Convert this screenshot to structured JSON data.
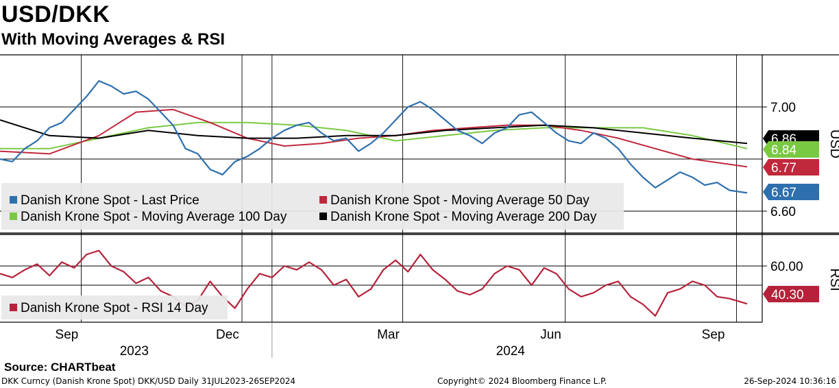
{
  "title": "USD/DKK",
  "subtitle": "With Moving Averages & RSI",
  "source": "Source: CHARTbeat",
  "footer_left": "DKK Curncy (Danish Krone Spot) DKK/USD  Daily 31JUL2023-26SEP2024",
  "footer_center": "Copyright© 2024 Bloomberg Finance L.P.",
  "footer_right": "26-Sep-2024 10:36:16",
  "colors": {
    "price": "#2e6fad",
    "ma50": "#c0283c",
    "ma100": "#7ac943",
    "ma200": "#000000",
    "rsi": "#b5223a",
    "grid": "#000000"
  },
  "chart_data": [
    {
      "type": "line",
      "panel": "price",
      "axis_title": "USD",
      "yticks": [
        "7.00",
        "6.60"
      ],
      "ylim": [
        6.55,
        7.2
      ],
      "xlim": [
        "2023-07-31",
        "2024-09-26"
      ],
      "x_tick_labels": [
        "Sep",
        "Dec",
        "Mar",
        "Jun",
        "Sep"
      ],
      "year_labels": [
        "2023",
        "2024"
      ],
      "legend": [
        {
          "key": "price",
          "label": "Danish Krone Spot - Last Price"
        },
        {
          "key": "ma50",
          "label": "Danish Krone Spot - Moving Average 50 Day"
        },
        {
          "key": "ma100",
          "label": "Danish Krone Spot - Moving Average 100 Day"
        },
        {
          "key": "ma200",
          "label": "Danish Krone Spot - Moving Average 200 Day"
        }
      ],
      "badges": [
        {
          "key": "ma200",
          "text": "6.86",
          "value": 6.86
        },
        {
          "key": "ma100",
          "text": "6.84",
          "value": 6.84
        },
        {
          "key": "ma50",
          "text": "6.77",
          "value": 6.77
        },
        {
          "key": "price",
          "text": "6.67",
          "value": 6.67
        }
      ],
      "series": [
        {
          "key": "price",
          "name": "Danish Krone Spot - Last Price",
          "x": [
            "2023-07-31",
            "2023-08-07",
            "2023-08-14",
            "2023-08-21",
            "2023-08-28",
            "2023-09-04",
            "2023-09-11",
            "2023-09-18",
            "2023-09-25",
            "2023-10-02",
            "2023-10-09",
            "2023-10-16",
            "2023-10-23",
            "2023-10-30",
            "2023-11-06",
            "2023-11-13",
            "2023-11-20",
            "2023-11-27",
            "2023-12-04",
            "2023-12-11",
            "2023-12-18",
            "2023-12-25",
            "2024-01-01",
            "2024-01-08",
            "2024-01-15",
            "2024-01-22",
            "2024-01-29",
            "2024-02-05",
            "2024-02-12",
            "2024-02-19",
            "2024-02-26",
            "2024-03-04",
            "2024-03-11",
            "2024-03-18",
            "2024-03-25",
            "2024-04-01",
            "2024-04-08",
            "2024-04-15",
            "2024-04-22",
            "2024-04-29",
            "2024-05-06",
            "2024-05-13",
            "2024-05-20",
            "2024-05-27",
            "2024-06-03",
            "2024-06-10",
            "2024-06-17",
            "2024-06-24",
            "2024-07-01",
            "2024-07-08",
            "2024-07-15",
            "2024-07-22",
            "2024-07-29",
            "2024-08-05",
            "2024-08-12",
            "2024-08-19",
            "2024-08-26",
            "2024-09-02",
            "2024-09-09",
            "2024-09-16",
            "2024-09-26"
          ],
          "values": [
            6.8,
            6.79,
            6.84,
            6.87,
            6.92,
            6.94,
            6.99,
            7.04,
            7.1,
            7.08,
            7.05,
            7.06,
            7.03,
            6.98,
            6.93,
            6.84,
            6.82,
            6.76,
            6.74,
            6.79,
            6.81,
            6.84,
            6.88,
            6.91,
            6.93,
            6.94,
            6.9,
            6.87,
            6.88,
            6.83,
            6.86,
            6.9,
            6.95,
            7.0,
            7.02,
            6.99,
            6.95,
            6.91,
            6.89,
            6.86,
            6.9,
            6.92,
            6.97,
            6.98,
            6.94,
            6.9,
            6.87,
            6.86,
            6.9,
            6.88,
            6.84,
            6.78,
            6.73,
            6.69,
            6.72,
            6.75,
            6.73,
            6.7,
            6.71,
            6.68,
            6.67
          ]
        },
        {
          "key": "ma50",
          "name": "Danish Krone Spot - Moving Average 50 Day",
          "x": [
            "2023-07-31",
            "2023-08-28",
            "2023-09-25",
            "2023-10-16",
            "2023-11-06",
            "2023-11-27",
            "2023-12-18",
            "2024-01-08",
            "2024-01-29",
            "2024-02-19",
            "2024-03-11",
            "2024-04-01",
            "2024-04-22",
            "2024-05-13",
            "2024-06-03",
            "2024-06-24",
            "2024-07-15",
            "2024-08-05",
            "2024-08-26",
            "2024-09-26"
          ],
          "values": [
            6.83,
            6.82,
            6.89,
            6.98,
            6.99,
            6.94,
            6.88,
            6.85,
            6.86,
            6.88,
            6.89,
            6.91,
            6.92,
            6.93,
            6.93,
            6.91,
            6.88,
            6.84,
            6.8,
            6.77
          ]
        },
        {
          "key": "ma100",
          "name": "Danish Krone Spot - Moving Average 100 Day",
          "x": [
            "2023-07-31",
            "2023-08-28",
            "2023-09-25",
            "2023-10-23",
            "2023-11-20",
            "2023-12-18",
            "2024-01-15",
            "2024-02-12",
            "2024-03-11",
            "2024-04-08",
            "2024-05-06",
            "2024-06-03",
            "2024-07-01",
            "2024-07-29",
            "2024-08-26",
            "2024-09-26"
          ],
          "values": [
            6.84,
            6.84,
            6.88,
            6.92,
            6.94,
            6.94,
            6.93,
            6.91,
            6.87,
            6.89,
            6.91,
            6.92,
            6.92,
            6.92,
            6.89,
            6.84
          ]
        },
        {
          "key": "ma200",
          "name": "Danish Krone Spot - Moving Average 200 Day",
          "x": [
            "2023-07-31",
            "2023-08-28",
            "2023-09-25",
            "2023-10-23",
            "2023-11-20",
            "2023-12-18",
            "2024-01-15",
            "2024-02-12",
            "2024-03-11",
            "2024-04-08",
            "2024-05-06",
            "2024-06-03",
            "2024-07-01",
            "2024-07-29",
            "2024-08-26",
            "2024-09-26"
          ],
          "values": [
            6.95,
            6.89,
            6.88,
            6.91,
            6.89,
            6.88,
            6.88,
            6.89,
            6.89,
            6.91,
            6.92,
            6.93,
            6.92,
            6.9,
            6.88,
            6.86
          ]
        }
      ]
    },
    {
      "type": "line",
      "panel": "rsi",
      "axis_title": "RSI",
      "yticks": [
        "60.00"
      ],
      "ylim": [
        25,
        75
      ],
      "legend": [
        {
          "key": "rsi",
          "label": "Danish Krone Spot - RSI 14 Day"
        }
      ],
      "badges": [
        {
          "key": "rsi",
          "text": "40.30",
          "value": 40.3
        }
      ],
      "series": [
        {
          "key": "rsi",
          "name": "Danish Krone Spot - RSI 14 Day",
          "x": [
            "2023-07-31",
            "2023-08-07",
            "2023-08-14",
            "2023-08-21",
            "2023-08-28",
            "2023-09-04",
            "2023-09-11",
            "2023-09-18",
            "2023-09-25",
            "2023-10-02",
            "2023-10-09",
            "2023-10-16",
            "2023-10-23",
            "2023-10-30",
            "2023-11-06",
            "2023-11-13",
            "2023-11-20",
            "2023-11-27",
            "2023-12-04",
            "2023-12-11",
            "2023-12-18",
            "2023-12-25",
            "2024-01-01",
            "2024-01-08",
            "2024-01-15",
            "2024-01-22",
            "2024-01-29",
            "2024-02-05",
            "2024-02-12",
            "2024-02-19",
            "2024-02-26",
            "2024-03-04",
            "2024-03-11",
            "2024-03-18",
            "2024-03-25",
            "2024-04-01",
            "2024-04-08",
            "2024-04-15",
            "2024-04-22",
            "2024-04-29",
            "2024-05-06",
            "2024-05-13",
            "2024-05-20",
            "2024-05-27",
            "2024-06-03",
            "2024-06-10",
            "2024-06-17",
            "2024-06-24",
            "2024-07-01",
            "2024-07-08",
            "2024-07-15",
            "2024-07-22",
            "2024-07-29",
            "2024-08-05",
            "2024-08-12",
            "2024-08-19",
            "2024-08-26",
            "2024-09-02",
            "2024-09-09",
            "2024-09-16",
            "2024-09-26"
          ],
          "values": [
            56,
            54,
            58,
            61,
            55,
            62,
            59,
            66,
            68,
            60,
            57,
            51,
            54,
            47,
            44,
            39,
            42,
            52,
            44,
            38,
            48,
            56,
            54,
            60,
            58,
            62,
            58,
            50,
            53,
            44,
            48,
            58,
            63,
            57,
            66,
            58,
            53,
            47,
            45,
            48,
            56,
            60,
            58,
            50,
            59,
            56,
            48,
            44,
            46,
            50,
            52,
            44,
            40,
            34,
            46,
            48,
            52,
            50,
            44,
            43,
            40.3
          ]
        }
      ]
    }
  ]
}
